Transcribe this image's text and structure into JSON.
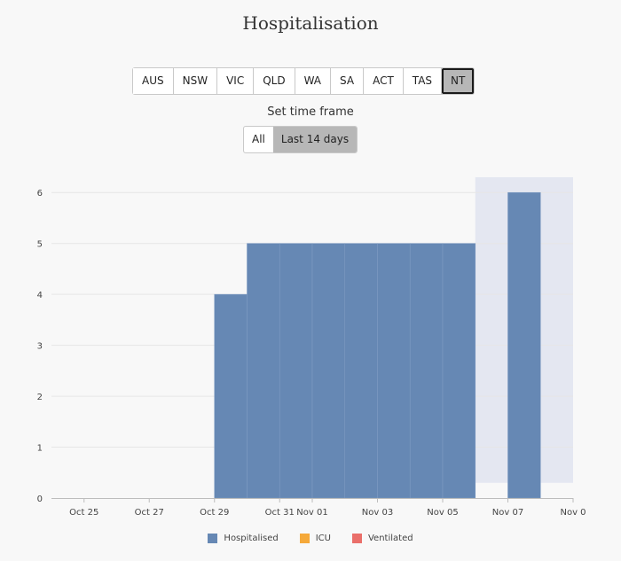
{
  "title": "Hospitalisation",
  "regions": [
    "AUS",
    "NSW",
    "VIC",
    "QLD",
    "WA",
    "SA",
    "ACT",
    "TAS",
    "NT"
  ],
  "active_region": "NT",
  "timeframe": {
    "label": "Set time frame",
    "options": [
      "All",
      "Last 14 days"
    ],
    "active": "Last 14 days"
  },
  "colors": {
    "hospitalised": "#6688b4",
    "icu": "#f5a93a",
    "ventilated": "#ea6f6a",
    "highlight": "#e4e7f1"
  },
  "chart_data": {
    "type": "bar",
    "categories": [
      "Oct 29",
      "Oct 30",
      "Oct 31",
      "Nov 01",
      "Nov 02",
      "Nov 03",
      "Nov 04",
      "Nov 05",
      "Nov 06",
      "Nov 07"
    ],
    "series": [
      {
        "name": "Hospitalised",
        "values": [
          4,
          5,
          5,
          5,
          5,
          5,
          5,
          5,
          0,
          6
        ]
      },
      {
        "name": "ICU",
        "values": [
          0,
          0,
          0,
          0,
          0,
          0,
          0,
          0,
          0,
          0
        ]
      },
      {
        "name": "Ventilated",
        "values": [
          0,
          0,
          0,
          0,
          0,
          0,
          0,
          0,
          0,
          0
        ]
      }
    ],
    "x_range": [
      "Oct 24",
      "Nov 09"
    ],
    "x_ticks": [
      "Oct 25",
      "Oct 27",
      "Oct 29",
      "Oct 31",
      "Nov 01",
      "Nov 03",
      "Nov 05",
      "Nov 07",
      "Nov 0"
    ],
    "y_ticks": [
      0,
      1,
      2,
      3,
      4,
      5,
      6
    ],
    "ylim": [
      0,
      6.3
    ],
    "highlight_range": [
      "Nov 06",
      "Nov 09"
    ],
    "grid": true,
    "legend_position": "bottom"
  }
}
